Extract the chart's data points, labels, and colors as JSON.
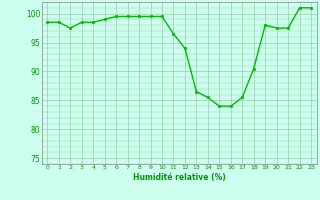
{
  "x": [
    0,
    1,
    2,
    3,
    4,
    5,
    6,
    7,
    8,
    9,
    10,
    11,
    12,
    13,
    14,
    15,
    16,
    17,
    18,
    19,
    20,
    21,
    22,
    23
  ],
  "y": [
    98.5,
    98.5,
    97.5,
    98.5,
    98.5,
    99.0,
    99.5,
    99.5,
    99.5,
    99.5,
    99.5,
    96.5,
    94.0,
    86.5,
    85.5,
    84.0,
    84.0,
    85.5,
    90.5,
    98.0,
    97.5,
    97.5,
    101.0,
    101.0
  ],
  "line_color": "#00BB00",
  "marker_color": "#00BB00",
  "bg_color": "#CCFFEE",
  "grid_color": "#99CCAA",
  "xlabel": "Humidité relative (%)",
  "xlabel_color": "#009900",
  "tick_color": "#009900",
  "ylim": [
    74,
    102
  ],
  "xlim": [
    -0.5,
    23.5
  ],
  "yticks": [
    75,
    80,
    85,
    90,
    95,
    100
  ],
  "xticks": [
    0,
    1,
    2,
    3,
    4,
    5,
    6,
    7,
    8,
    9,
    10,
    11,
    12,
    13,
    14,
    15,
    16,
    17,
    18,
    19,
    20,
    21,
    22,
    23
  ]
}
